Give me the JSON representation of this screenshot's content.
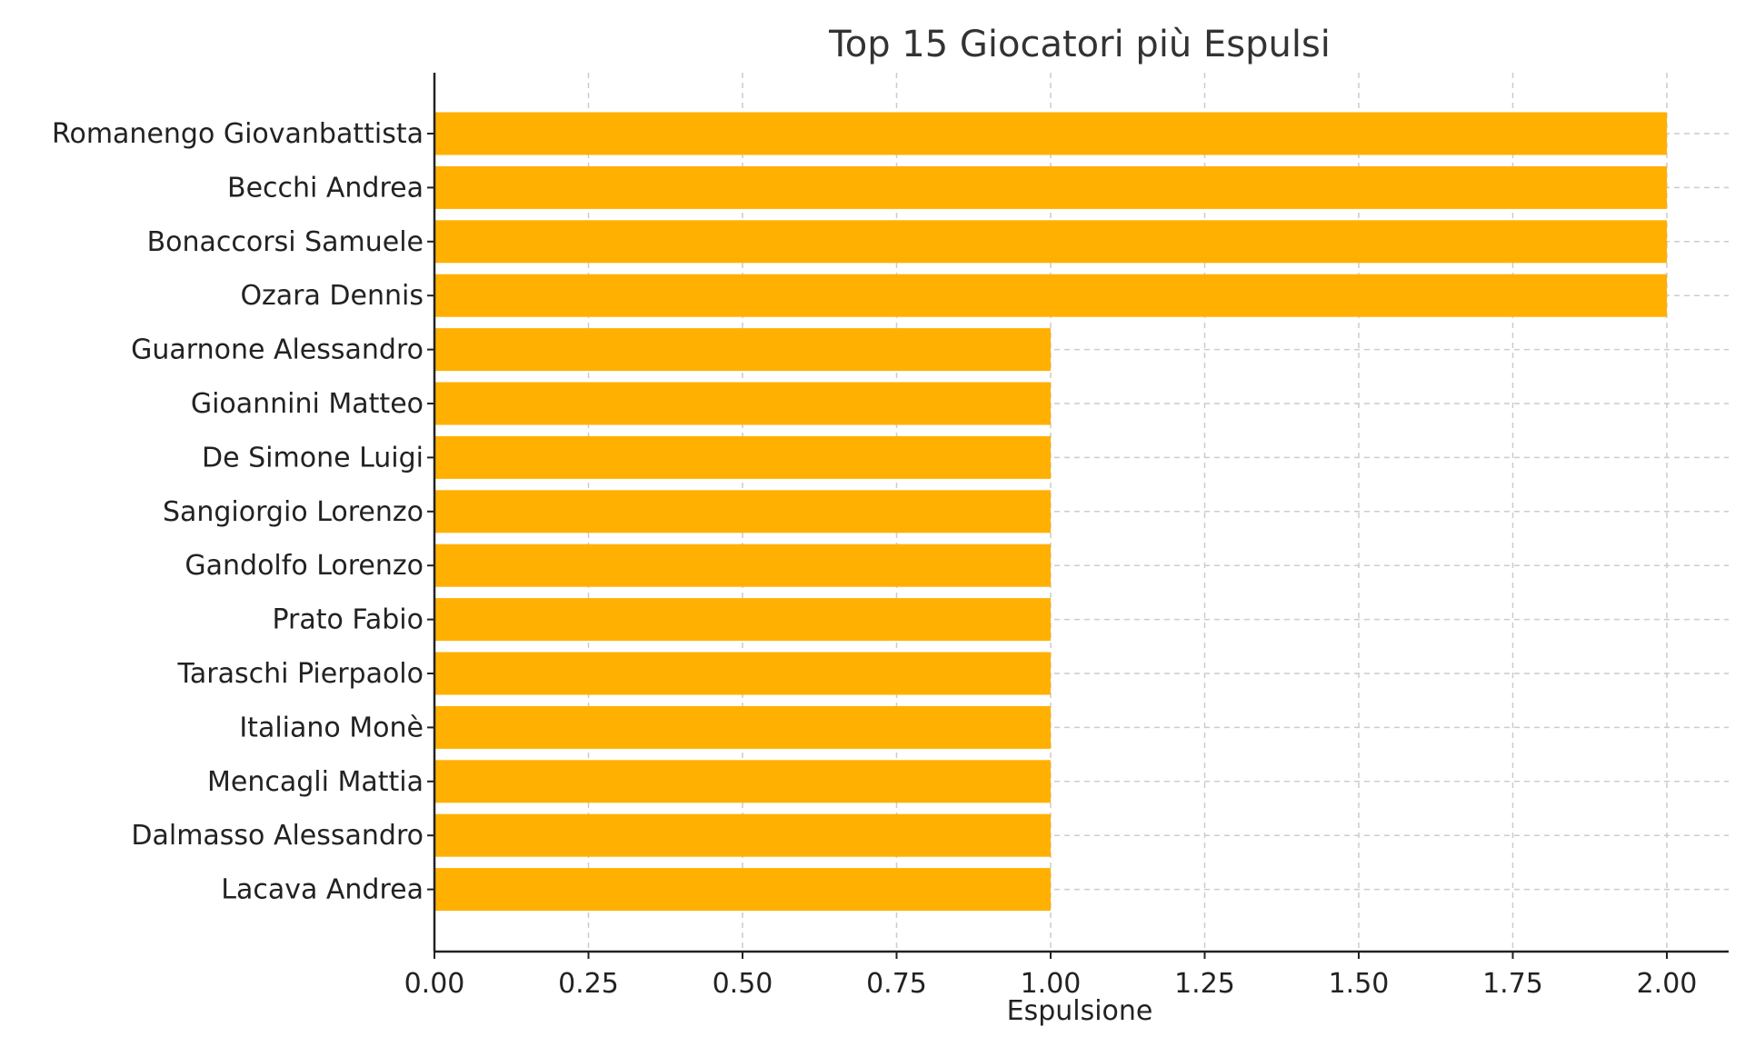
{
  "chart_data": {
    "type": "bar",
    "orientation": "horizontal",
    "title": "Top 15 Giocatori più Espulsi",
    "xlabel": "Espulsione",
    "ylabel": "",
    "xlim": [
      0,
      2.1
    ],
    "x_ticks": [
      "0.00",
      "0.25",
      "0.50",
      "0.75",
      "1.00",
      "1.25",
      "1.50",
      "1.75",
      "2.00"
    ],
    "x_tick_values": [
      0,
      0.25,
      0.5,
      0.75,
      1.0,
      1.25,
      1.5,
      1.75,
      2.0
    ],
    "grid": true,
    "bar_color": "#FFB000",
    "categories": [
      "Romanengo Giovanbattista",
      "Becchi Andrea",
      "Bonaccorsi Samuele",
      "Ozara Dennis",
      "Guarnone Alessandro",
      "Gioannini Matteo",
      "De Simone Luigi",
      "Sangiorgio Lorenzo",
      "Gandolfo Lorenzo",
      "Prato Fabio",
      "Taraschi Pierpaolo",
      "Italiano Monè",
      "Mencagli Mattia",
      "Dalmasso Alessandro",
      "Lacava Andrea"
    ],
    "values": [
      2,
      2,
      2,
      2,
      1,
      1,
      1,
      1,
      1,
      1,
      1,
      1,
      1,
      1,
      1
    ]
  }
}
